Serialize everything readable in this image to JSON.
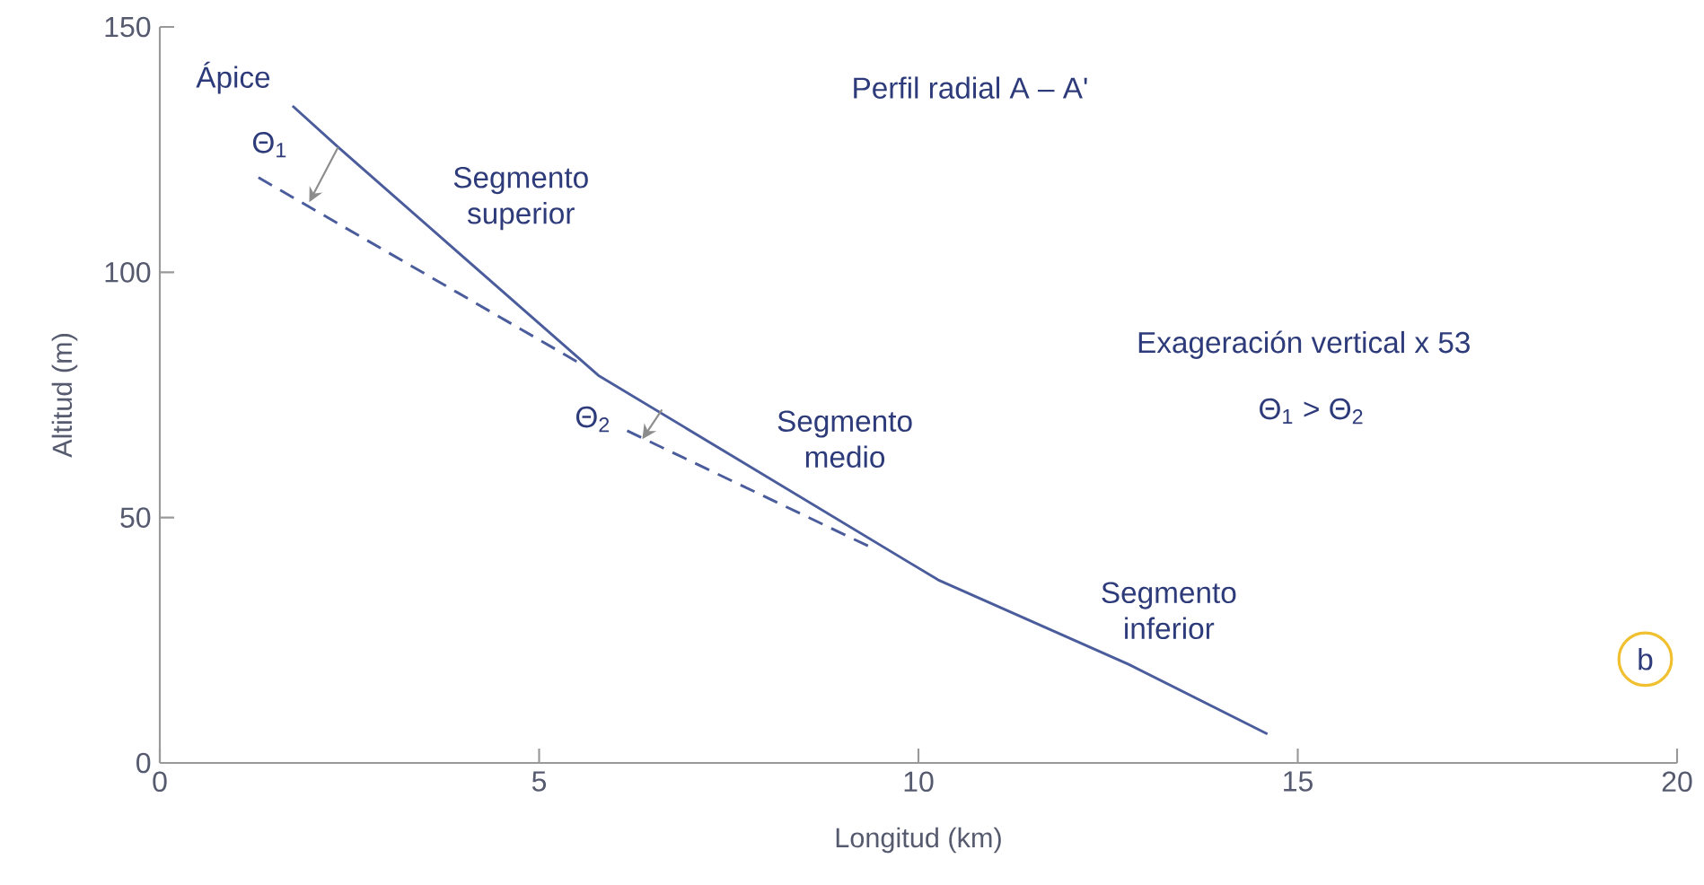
{
  "chart_data": {
    "type": "line",
    "title": "Perfil radial A – A'",
    "xlabel": "Longitud (km)",
    "ylabel": "Altitud (m)",
    "xlim": [
      0,
      20
    ],
    "xticks": [
      0,
      5,
      10,
      15,
      20
    ],
    "ylim": [
      0,
      150
    ],
    "yticks": [
      0,
      50,
      100,
      150
    ],
    "grid": false,
    "marker": "none",
    "series": [
      {
        "color": "#4a5c9c",
        "line_style": "solid",
        "x": [
          1.75,
          2.35,
          5.78,
          10.26,
          12.77,
          14.6
        ],
        "values": [
          133.9,
          125.5,
          79.0,
          37.3,
          20.1,
          5.9
        ]
      },
      {
        "color": "#4a5c9c",
        "line_style": "dashed",
        "x": [
          1.3,
          5.52
        ],
        "values": [
          119.3,
          81.6
        ]
      },
      {
        "color": "#4a5c9c",
        "line_style": "dashed",
        "x": [
          6.16,
          9.38
        ],
        "values": [
          67.7,
          43.9
        ]
      }
    ],
    "annotations": [
      "Ápice",
      "Θ$_{1}$",
      "Segmento superior",
      "Θ$_{2}$",
      "Segmento medio",
      "Segmento inferior",
      "Exageración vertical x 53",
      "Θ$_{1}$ > Θ$_{2}$",
      "b"
    ]
  }
}
